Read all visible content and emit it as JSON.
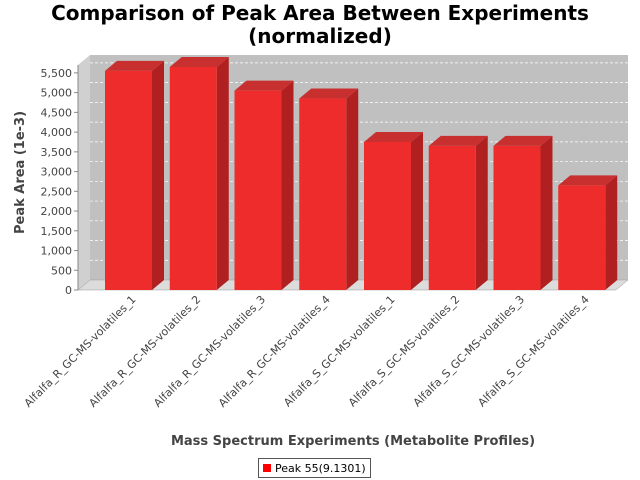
{
  "chart_data": {
    "type": "bar",
    "title_line1": "Comparison of Peak Area Between Experiments",
    "title_line2": "(normalized)",
    "xlabel": "Mass Spectrum Experiments (Metabolite Profiles)",
    "ylabel": "Peak Area (1e-3)",
    "ylim": [
      0,
      5700
    ],
    "yticks": [
      "0",
      "500",
      "1,000",
      "1,500",
      "2,000",
      "2,500",
      "3,000",
      "3,500",
      "4,000",
      "4,500",
      "5,000",
      "5,500"
    ],
    "categories": [
      "Alfalfa_R_GC-MS-volatiles_1",
      "Alfalfa_R_GC-MS-volatiles_2",
      "Alfalfa_R_GC-MS-volatiles_3",
      "Alfalfa_R_GC-MS-volatiles_4",
      "Alfalfa_S_GC-MS-volatiles_1",
      "Alfalfa_S_GC-MS-volatiles_2",
      "Alfalfa_S_GC-MS-volatiles_3",
      "Alfalfa_S_GC-MS-volatiles_4"
    ],
    "series": [
      {
        "name": "Peak 55(9.1301)",
        "color": "#ff0000",
        "values": [
          5550,
          5650,
          5050,
          4850,
          3750,
          3650,
          3650,
          2650
        ]
      }
    ],
    "grid": true,
    "legend_position": "bottom"
  }
}
